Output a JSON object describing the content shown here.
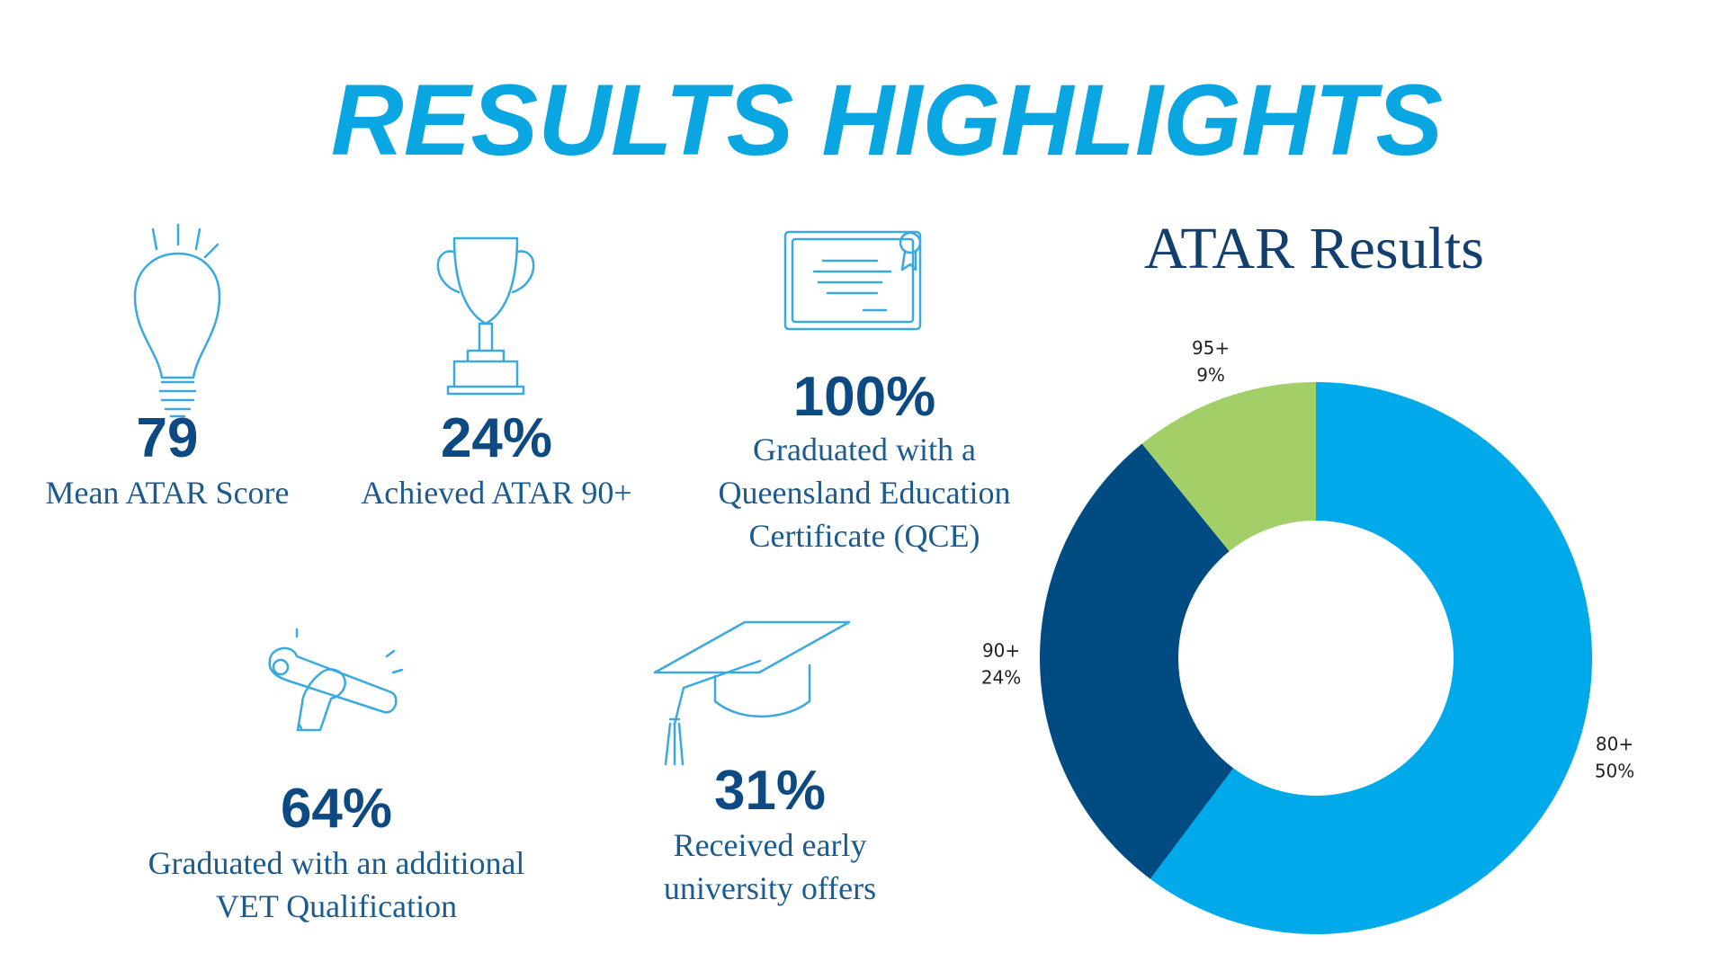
{
  "title": "RESULTS HIGHLIGHTS",
  "stats": [
    {
      "value": "79",
      "description": [
        "Mean ATAR Score"
      ]
    },
    {
      "value": "24%",
      "description": [
        "Achieved ATAR 90+"
      ]
    },
    {
      "value": "100%",
      "description": [
        "Graduated with a",
        "Queensland Education",
        "Certificate (QCE)"
      ]
    },
    {
      "value": "64%",
      "description": [
        "Graduated with an additional",
        "VET Qualification"
      ]
    },
    {
      "value": "31%",
      "description": [
        "Received early",
        "university offers"
      ]
    }
  ],
  "chart_data": {
    "type": "donut",
    "title": "ATAR Results",
    "categories": [
      "80+",
      "90+",
      "95+"
    ],
    "values": [
      50,
      24,
      9
    ],
    "value_labels": [
      "50%",
      "24%",
      "9%"
    ],
    "colors": [
      "#00a9e9",
      "#004b82",
      "#a2cf67"
    ]
  }
}
